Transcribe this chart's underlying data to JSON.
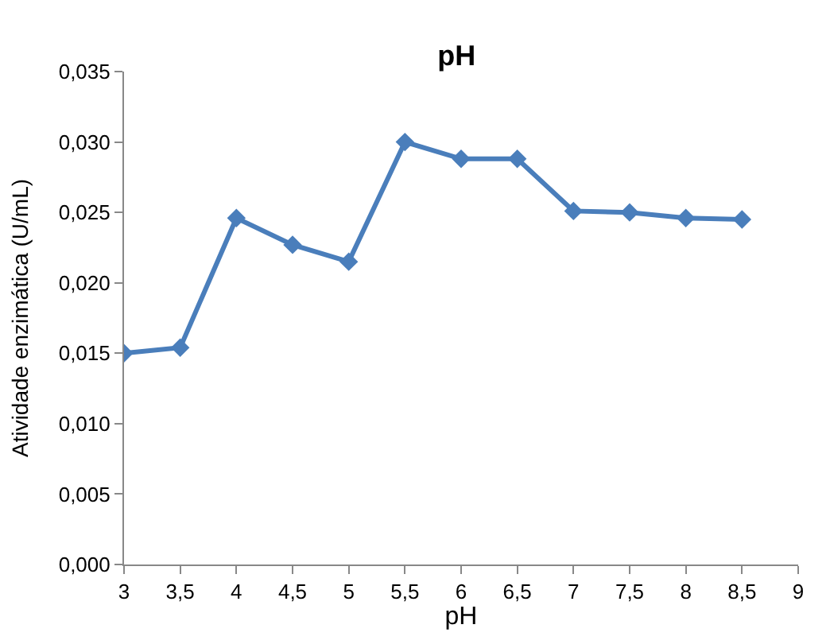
{
  "chart_data": {
    "type": "line",
    "title": "pH",
    "xlabel": "pH",
    "ylabel": "Atividade enzimática (U/mL)",
    "x": [
      3,
      3.5,
      4,
      4.5,
      5,
      5.5,
      6,
      6.5,
      7,
      7.5,
      8,
      8.5
    ],
    "series": [
      {
        "color": "#4a7ebb",
        "values": [
          0.015,
          0.0154,
          0.0246,
          0.0227,
          0.0215,
          0.03,
          0.0288,
          0.0288,
          0.0251,
          0.025,
          0.0246,
          0.0245
        ]
      }
    ],
    "xlim": [
      3,
      9
    ],
    "xticks": [
      3,
      {
        "value": 3.5,
        "label": "3,5"
      },
      4,
      {
        "value": 4.5,
        "label": "4,5"
      },
      5,
      {
        "value": 5.5,
        "label": "5,5"
      },
      6,
      {
        "value": 6.5,
        "label": "6,5"
      },
      7,
      {
        "value": 7.5,
        "label": "7,5"
      },
      8,
      {
        "value": 8.5,
        "label": "8,5"
      },
      9
    ],
    "ylim": [
      0,
      0.035
    ],
    "yticks": [
      {
        "value": 0,
        "label": "0,000"
      },
      {
        "value": 0.005,
        "label": "0,005"
      },
      {
        "value": 0.01,
        "label": "0,010"
      },
      {
        "value": 0.015,
        "label": "0,015"
      },
      {
        "value": 0.02,
        "label": "0,020"
      },
      {
        "value": 0.025,
        "label": "0,025"
      },
      {
        "value": 0.03,
        "label": "0,030"
      },
      {
        "value": 0.035,
        "label": "0,035"
      }
    ],
    "marker": "diamond",
    "line_style": "solid"
  }
}
